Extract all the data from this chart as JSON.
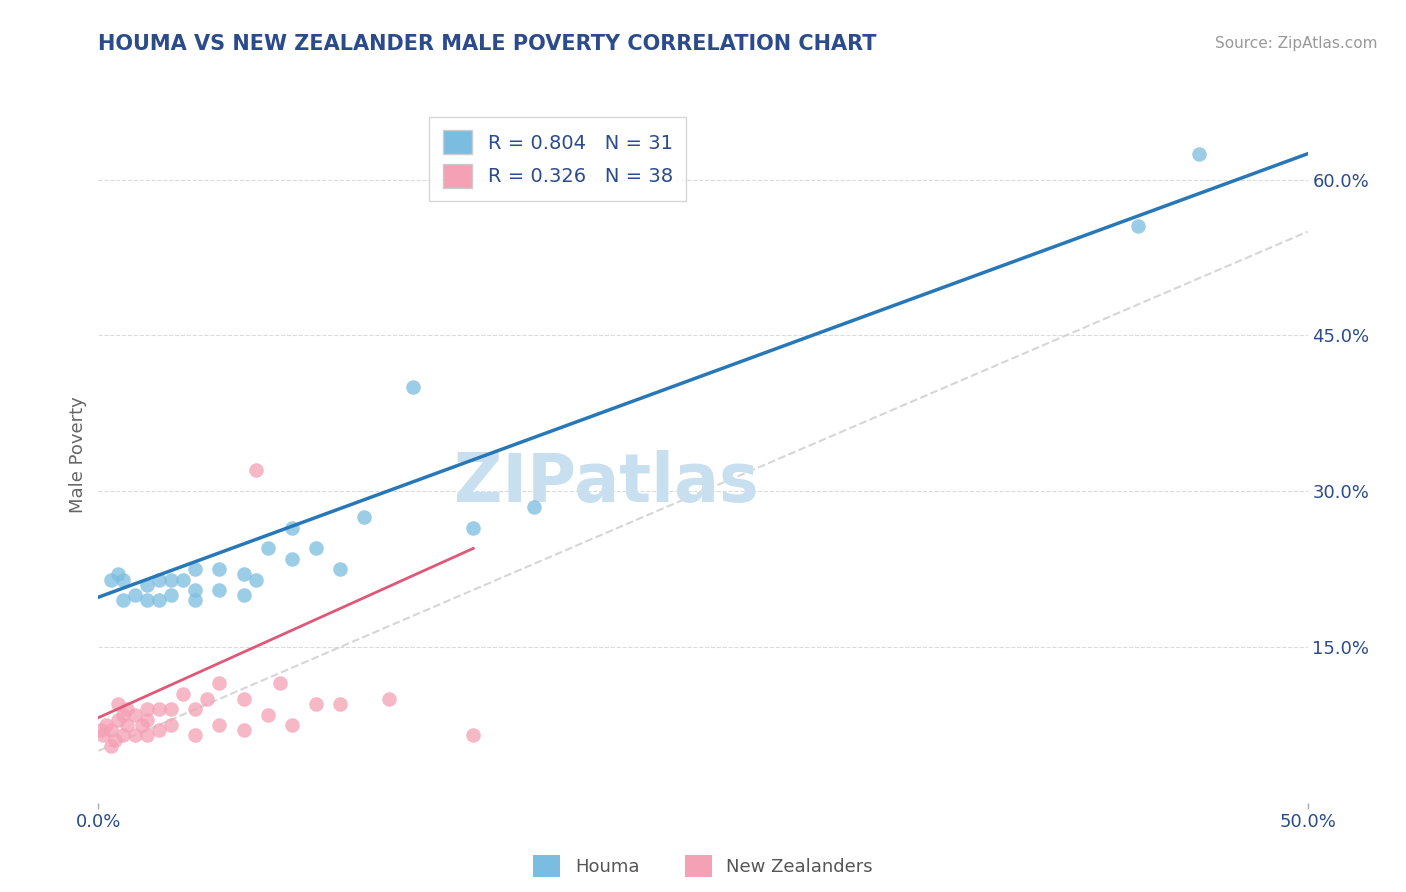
{
  "title": "HOUMA VS NEW ZEALANDER MALE POVERTY CORRELATION CHART",
  "source_text": "Source: ZipAtlas.com",
  "ylabel": "Male Poverty",
  "xlim": [
    0.0,
    0.5
  ],
  "ylim": [
    0.0,
    0.67
  ],
  "xticks": [
    0.0,
    0.5
  ],
  "xtick_labels": [
    "0.0%",
    "50.0%"
  ],
  "yticks_right": [
    0.15,
    0.3,
    0.45,
    0.6
  ],
  "ytick_labels_right": [
    "15.0%",
    "30.0%",
    "45.0%",
    "60.0%"
  ],
  "houma_R": 0.804,
  "houma_N": 31,
  "nz_R": 0.326,
  "nz_N": 38,
  "houma_color": "#7bbde0",
  "nz_color": "#f4a0b5",
  "houma_line_color": "#2878b8",
  "nz_line_color": "#e05878",
  "ref_line_color": "#cccccc",
  "background_color": "#ffffff",
  "grid_color": "#cccccc",
  "title_color": "#2b4b8c",
  "axis_label_color": "#2b4b8c",
  "watermark_color": "#c8dff0",
  "watermark_text": "ZIPatlas",
  "legend_labels": [
    "Houma",
    "New Zealanders"
  ],
  "houma_x": [
    0.005,
    0.008,
    0.01,
    0.01,
    0.015,
    0.02,
    0.02,
    0.025,
    0.025,
    0.03,
    0.03,
    0.035,
    0.04,
    0.04,
    0.04,
    0.05,
    0.05,
    0.06,
    0.06,
    0.065,
    0.07,
    0.08,
    0.08,
    0.09,
    0.1,
    0.11,
    0.13,
    0.155,
    0.18,
    0.43,
    0.455
  ],
  "houma_y": [
    0.215,
    0.22,
    0.195,
    0.215,
    0.2,
    0.195,
    0.21,
    0.195,
    0.215,
    0.2,
    0.215,
    0.215,
    0.195,
    0.205,
    0.225,
    0.205,
    0.225,
    0.2,
    0.22,
    0.215,
    0.245,
    0.235,
    0.265,
    0.245,
    0.225,
    0.275,
    0.4,
    0.265,
    0.285,
    0.555,
    0.625
  ],
  "nz_x": [
    0.001,
    0.002,
    0.003,
    0.005,
    0.005,
    0.007,
    0.008,
    0.008,
    0.01,
    0.01,
    0.012,
    0.012,
    0.015,
    0.015,
    0.018,
    0.02,
    0.02,
    0.02,
    0.025,
    0.025,
    0.03,
    0.03,
    0.035,
    0.04,
    0.04,
    0.045,
    0.05,
    0.05,
    0.06,
    0.06,
    0.065,
    0.07,
    0.075,
    0.08,
    0.09,
    0.1,
    0.12,
    0.155
  ],
  "nz_y": [
    0.07,
    0.065,
    0.075,
    0.055,
    0.07,
    0.06,
    0.08,
    0.095,
    0.065,
    0.085,
    0.075,
    0.09,
    0.065,
    0.085,
    0.075,
    0.065,
    0.08,
    0.09,
    0.07,
    0.09,
    0.075,
    0.09,
    0.105,
    0.065,
    0.09,
    0.1,
    0.075,
    0.115,
    0.07,
    0.1,
    0.32,
    0.085,
    0.115,
    0.075,
    0.095,
    0.095,
    0.1,
    0.065
  ],
  "houma_line_x": [
    0.0,
    0.5
  ],
  "houma_line_y": [
    0.198,
    0.625
  ],
  "nz_line_x": [
    0.0,
    0.155
  ],
  "nz_line_y": [
    0.082,
    0.245
  ],
  "ref_line_x": [
    0.0,
    0.5
  ],
  "ref_line_y": [
    0.0,
    0.5
  ]
}
